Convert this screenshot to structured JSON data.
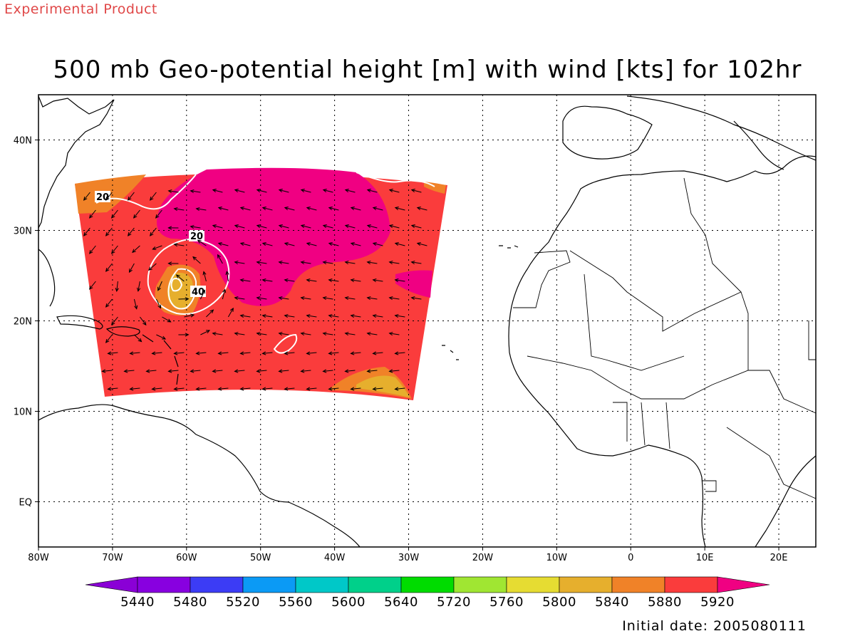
{
  "header": {
    "label": "Experimental Product",
    "title": "500 mb Geo-potential height [m] with wind [kts] for 102hr"
  },
  "footer": {
    "initial_date": "Initial date: 2005080111"
  },
  "map": {
    "lon_range": [
      -80,
      25
    ],
    "lat_range": [
      -5,
      45
    ],
    "lon_ticks": [
      {
        "v": -80,
        "label": "80W"
      },
      {
        "v": -70,
        "label": "70W"
      },
      {
        "v": -60,
        "label": "60W"
      },
      {
        "v": -50,
        "label": "50W"
      },
      {
        "v": -40,
        "label": "40W"
      },
      {
        "v": -30,
        "label": "30W"
      },
      {
        "v": -20,
        "label": "20W"
      },
      {
        "v": -10,
        "label": "10W"
      },
      {
        "v": 0,
        "label": "0"
      },
      {
        "v": 10,
        "label": "10E"
      },
      {
        "v": 20,
        "label": "20E"
      }
    ],
    "lat_ticks": [
      {
        "v": 40,
        "label": "40N"
      },
      {
        "v": 30,
        "label": "30N"
      },
      {
        "v": 20,
        "label": "20N"
      },
      {
        "v": 10,
        "label": "10N"
      },
      {
        "v": 0,
        "label": "EQ"
      }
    ],
    "contour_labels": [
      "20",
      "20",
      "40"
    ]
  },
  "colorbar": {
    "labels": [
      "5440",
      "5480",
      "5520",
      "5560",
      "5600",
      "5640",
      "5720",
      "5760",
      "5800",
      "5840",
      "5880",
      "5920"
    ],
    "colors": [
      "#8a00d6",
      "#8800e0",
      "#3c3cf5",
      "#0b9af5",
      "#00c8c8",
      "#00d08a",
      "#00dc00",
      "#a0e632",
      "#e6dc32",
      "#e6af2d",
      "#f08228",
      "#fa3c3c",
      "#f00082"
    ]
  },
  "colors": {
    "field_main": "#fa3c3c",
    "field_high": "#f00082",
    "field_orange": "#f08228",
    "field_gold": "#e6af2d",
    "experimental_text": "#e04848"
  }
}
